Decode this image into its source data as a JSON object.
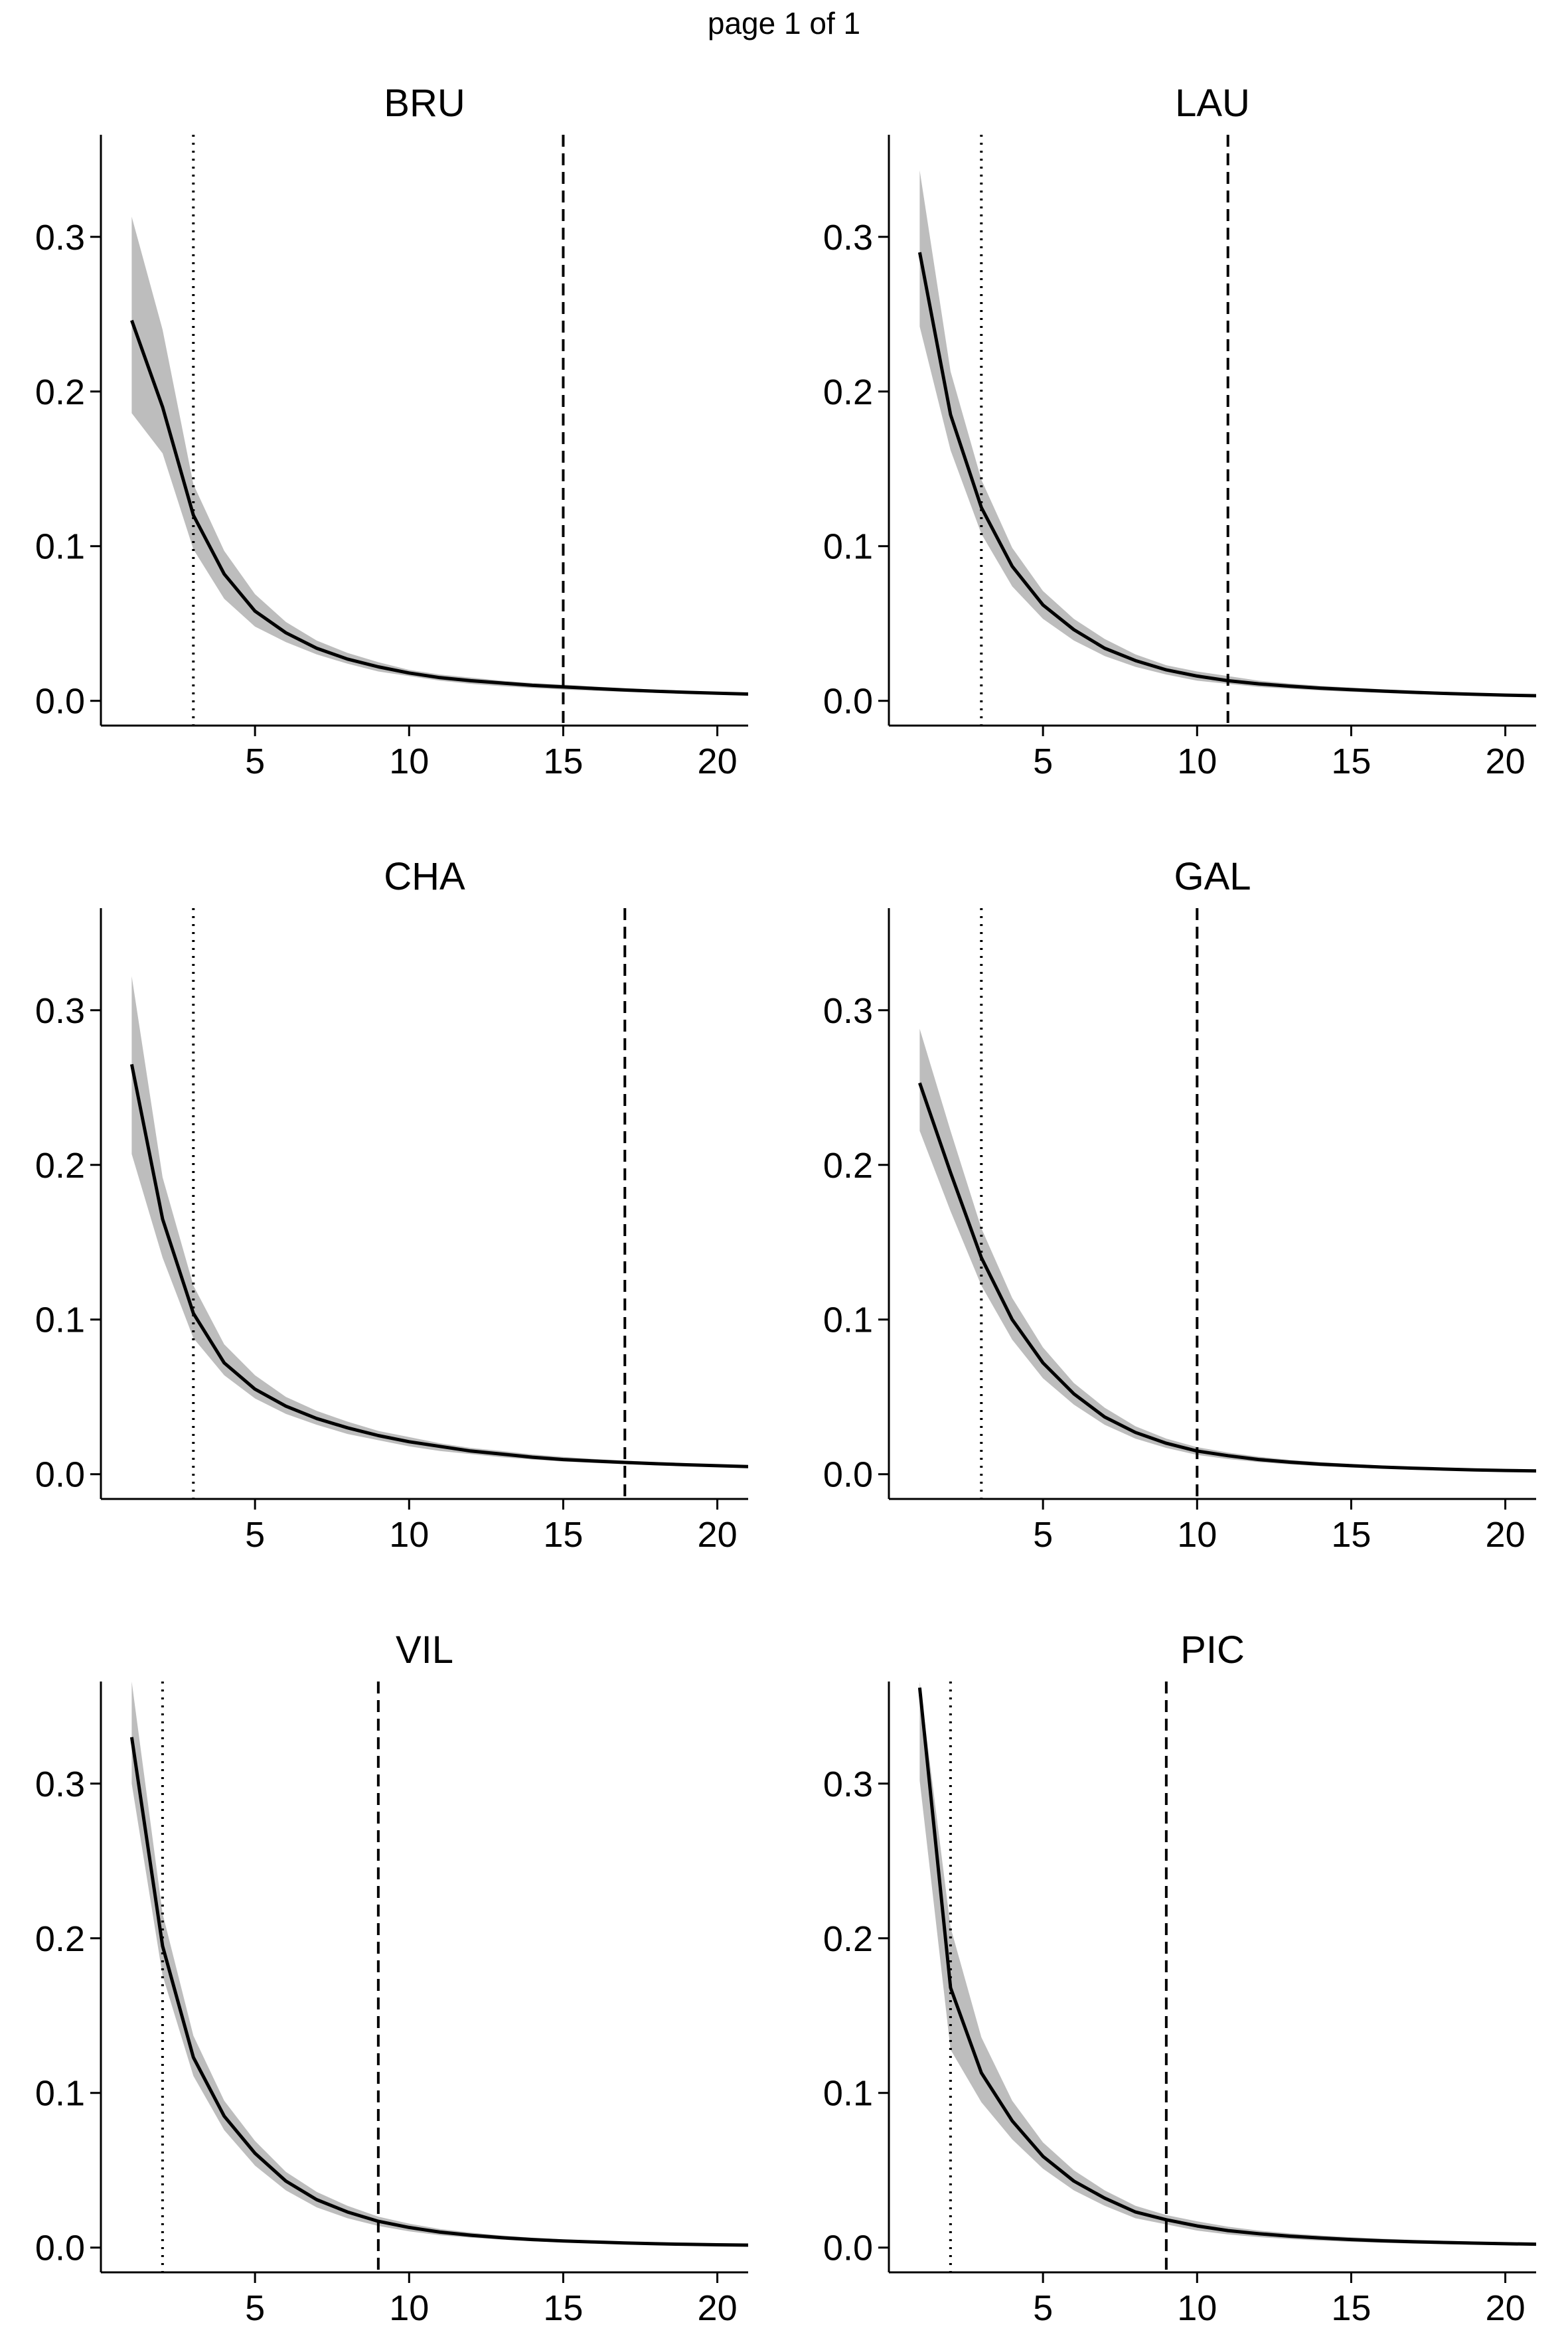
{
  "page": {
    "label": "page 1 of 1"
  },
  "chart_data": [
    {
      "type": "line",
      "title": "BRU",
      "xlabel": "",
      "ylabel": "",
      "xlim": [
        0,
        21
      ],
      "ylim": [
        -0.016,
        0.366
      ],
      "xticks": [
        5,
        10,
        15,
        20
      ],
      "yticks": [
        0.0,
        0.1,
        0.2,
        0.3
      ],
      "xtick_labels": [
        "5",
        "10",
        "15",
        "20"
      ],
      "ytick_labels": [
        "0.0",
        "0.1",
        "0.2",
        "0.3"
      ],
      "grid": false,
      "band_color": "#bdbdbd",
      "line_color": "#000000",
      "x": [
        1,
        2,
        3,
        4,
        5,
        6,
        7,
        8,
        9,
        10,
        11,
        12,
        13,
        14,
        15,
        16,
        17,
        18,
        19,
        20,
        21
      ],
      "y": [
        0.246,
        0.19,
        0.12,
        0.082,
        0.058,
        0.044,
        0.034,
        0.027,
        0.022,
        0.018,
        0.015,
        0.013,
        0.0115,
        0.01,
        0.009,
        0.008,
        0.007,
        0.0062,
        0.0055,
        0.0049,
        0.0044
      ],
      "lower": [
        0.186,
        0.16,
        0.098,
        0.066,
        0.048,
        0.038,
        0.03,
        0.024,
        0.019,
        0.016,
        0.013,
        0.011,
        0.0095,
        0.0083,
        0.0073,
        0.0065,
        0.0058,
        0.0052,
        0.0046,
        0.0041,
        0.0037
      ],
      "upper": [
        0.313,
        0.24,
        0.14,
        0.097,
        0.069,
        0.051,
        0.039,
        0.031,
        0.025,
        0.02,
        0.017,
        0.015,
        0.013,
        0.0115,
        0.0105,
        0.0093,
        0.0082,
        0.0072,
        0.0064,
        0.0057,
        0.0051
      ],
      "dotted_vline": 3,
      "dashed_vline": 15
    },
    {
      "type": "line",
      "title": "LAU",
      "xlabel": "",
      "ylabel": "",
      "xlim": [
        0,
        21
      ],
      "ylim": [
        -0.016,
        0.366
      ],
      "xticks": [
        5,
        10,
        15,
        20
      ],
      "yticks": [
        0.0,
        0.1,
        0.2,
        0.3
      ],
      "xtick_labels": [
        "5",
        "10",
        "15",
        "20"
      ],
      "ytick_labels": [
        "0.0",
        "0.1",
        "0.2",
        "0.3"
      ],
      "grid": false,
      "band_color": "#bdbdbd",
      "line_color": "#000000",
      "x": [
        1,
        2,
        3,
        4,
        5,
        6,
        7,
        8,
        9,
        10,
        11,
        12,
        13,
        14,
        15,
        16,
        17,
        18,
        19,
        20,
        21
      ],
      "y": [
        0.29,
        0.185,
        0.125,
        0.087,
        0.062,
        0.046,
        0.034,
        0.026,
        0.02,
        0.016,
        0.013,
        0.011,
        0.0095,
        0.0082,
        0.0072,
        0.0063,
        0.0055,
        0.0048,
        0.0042,
        0.0037,
        0.0033
      ],
      "lower": [
        0.242,
        0.162,
        0.108,
        0.074,
        0.053,
        0.039,
        0.029,
        0.022,
        0.017,
        0.013,
        0.011,
        0.009,
        0.0078,
        0.0067,
        0.0058,
        0.0051,
        0.0044,
        0.0038,
        0.0033,
        0.0029,
        0.0026
      ],
      "upper": [
        0.343,
        0.213,
        0.143,
        0.099,
        0.071,
        0.053,
        0.04,
        0.03,
        0.023,
        0.019,
        0.016,
        0.013,
        0.0112,
        0.0097,
        0.0086,
        0.0075,
        0.0066,
        0.0058,
        0.0051,
        0.0045,
        0.004
      ],
      "dotted_vline": 3,
      "dashed_vline": 11
    },
    {
      "type": "line",
      "title": "CHA",
      "xlabel": "",
      "ylabel": "",
      "xlim": [
        0,
        21
      ],
      "ylim": [
        -0.016,
        0.366
      ],
      "xticks": [
        5,
        10,
        15,
        20
      ],
      "yticks": [
        0.0,
        0.1,
        0.2,
        0.3
      ],
      "xtick_labels": [
        "5",
        "10",
        "15",
        "20"
      ],
      "ytick_labels": [
        "0.0",
        "0.1",
        "0.2",
        "0.3"
      ],
      "grid": false,
      "band_color": "#bdbdbd",
      "line_color": "#000000",
      "x": [
        1,
        2,
        3,
        4,
        5,
        6,
        7,
        8,
        9,
        10,
        11,
        12,
        13,
        14,
        15,
        16,
        17,
        18,
        19,
        20,
        21
      ],
      "y": [
        0.265,
        0.165,
        0.104,
        0.072,
        0.055,
        0.044,
        0.036,
        0.03,
        0.025,
        0.021,
        0.018,
        0.015,
        0.013,
        0.011,
        0.0095,
        0.0085,
        0.0076,
        0.0068,
        0.0061,
        0.0055,
        0.0049
      ],
      "lower": [
        0.207,
        0.14,
        0.088,
        0.064,
        0.049,
        0.039,
        0.032,
        0.026,
        0.022,
        0.018,
        0.015,
        0.013,
        0.011,
        0.0095,
        0.0082,
        0.0073,
        0.0065,
        0.0058,
        0.0052,
        0.0047,
        0.0042
      ],
      "upper": [
        0.322,
        0.192,
        0.122,
        0.084,
        0.064,
        0.05,
        0.041,
        0.034,
        0.028,
        0.024,
        0.02,
        0.017,
        0.015,
        0.0128,
        0.0112,
        0.0099,
        0.0088,
        0.0079,
        0.0071,
        0.0064,
        0.0057
      ],
      "dotted_vline": 3,
      "dashed_vline": 17
    },
    {
      "type": "line",
      "title": "GAL",
      "xlabel": "",
      "ylabel": "",
      "xlim": [
        0,
        21
      ],
      "ylim": [
        -0.016,
        0.366
      ],
      "xticks": [
        5,
        10,
        15,
        20
      ],
      "yticks": [
        0.0,
        0.1,
        0.2,
        0.3
      ],
      "xtick_labels": [
        "5",
        "10",
        "15",
        "20"
      ],
      "ytick_labels": [
        "0.0",
        "0.1",
        "0.2",
        "0.3"
      ],
      "grid": false,
      "band_color": "#bdbdbd",
      "line_color": "#000000",
      "x": [
        1,
        2,
        3,
        4,
        5,
        6,
        7,
        8,
        9,
        10,
        11,
        12,
        13,
        14,
        15,
        16,
        17,
        18,
        19,
        20,
        21
      ],
      "y": [
        0.253,
        0.195,
        0.14,
        0.1,
        0.072,
        0.052,
        0.037,
        0.027,
        0.02,
        0.015,
        0.012,
        0.0095,
        0.0078,
        0.0065,
        0.0055,
        0.0046,
        0.0039,
        0.0033,
        0.0028,
        0.0024,
        0.0021
      ],
      "lower": [
        0.222,
        0.17,
        0.122,
        0.087,
        0.062,
        0.045,
        0.032,
        0.023,
        0.017,
        0.0125,
        0.0098,
        0.0078,
        0.0063,
        0.0052,
        0.0043,
        0.0036,
        0.003,
        0.0025,
        0.0021,
        0.0018,
        0.0015
      ],
      "upper": [
        0.288,
        0.222,
        0.159,
        0.114,
        0.082,
        0.059,
        0.043,
        0.031,
        0.023,
        0.0175,
        0.014,
        0.0113,
        0.0093,
        0.0078,
        0.0066,
        0.0056,
        0.0048,
        0.0041,
        0.0035,
        0.003,
        0.0026
      ],
      "dotted_vline": 3,
      "dashed_vline": 10
    },
    {
      "type": "line",
      "title": "VIL",
      "xlabel": "",
      "ylabel": "",
      "xlim": [
        0,
        21
      ],
      "ylim": [
        -0.016,
        0.366
      ],
      "xticks": [
        5,
        10,
        15,
        20
      ],
      "yticks": [
        0.0,
        0.1,
        0.2,
        0.3
      ],
      "xtick_labels": [
        "5",
        "10",
        "15",
        "20"
      ],
      "ytick_labels": [
        "0.0",
        "0.1",
        "0.2",
        "0.3"
      ],
      "grid": false,
      "band_color": "#bdbdbd",
      "line_color": "#000000",
      "x": [
        1,
        2,
        3,
        4,
        5,
        6,
        7,
        8,
        9,
        10,
        11,
        12,
        13,
        14,
        15,
        16,
        17,
        18,
        19,
        20,
        21
      ],
      "y": [
        0.33,
        0.195,
        0.123,
        0.085,
        0.061,
        0.043,
        0.031,
        0.023,
        0.017,
        0.013,
        0.01,
        0.008,
        0.0064,
        0.0052,
        0.0043,
        0.0036,
        0.003,
        0.0025,
        0.0021,
        0.0018,
        0.0016
      ],
      "lower": [
        0.3,
        0.176,
        0.111,
        0.076,
        0.053,
        0.037,
        0.026,
        0.019,
        0.014,
        0.0105,
        0.008,
        0.0064,
        0.0051,
        0.0041,
        0.0034,
        0.0028,
        0.0023,
        0.0019,
        0.0016,
        0.0014,
        0.0012
      ],
      "upper": [
        0.366,
        0.216,
        0.137,
        0.095,
        0.069,
        0.049,
        0.036,
        0.027,
        0.02,
        0.0155,
        0.012,
        0.0097,
        0.0078,
        0.0064,
        0.0053,
        0.0045,
        0.0038,
        0.0032,
        0.0027,
        0.0023,
        0.002
      ],
      "dotted_vline": 2,
      "dashed_vline": 9
    },
    {
      "type": "line",
      "title": "PIC",
      "xlabel": "",
      "ylabel": "",
      "xlim": [
        0,
        21
      ],
      "ylim": [
        -0.016,
        0.366
      ],
      "xticks": [
        5,
        10,
        15,
        20
      ],
      "yticks": [
        0.0,
        0.1,
        0.2,
        0.3
      ],
      "xtick_labels": [
        "5",
        "10",
        "15",
        "20"
      ],
      "ytick_labels": [
        "0.0",
        "0.1",
        "0.2",
        "0.3"
      ],
      "grid": false,
      "band_color": "#bdbdbd",
      "line_color": "#000000",
      "x": [
        1,
        2,
        3,
        4,
        5,
        6,
        7,
        8,
        9,
        10,
        11,
        12,
        13,
        14,
        15,
        16,
        17,
        18,
        19,
        20,
        21
      ],
      "y": [
        0.362,
        0.168,
        0.113,
        0.082,
        0.059,
        0.043,
        0.032,
        0.023,
        0.018,
        0.014,
        0.011,
        0.009,
        0.0074,
        0.0062,
        0.0052,
        0.0044,
        0.0038,
        0.0033,
        0.0029,
        0.0025,
        0.0022
      ],
      "lower": [
        0.302,
        0.128,
        0.094,
        0.07,
        0.051,
        0.037,
        0.027,
        0.019,
        0.015,
        0.011,
        0.0085,
        0.0068,
        0.0055,
        0.0045,
        0.0037,
        0.0031,
        0.0026,
        0.0022,
        0.0019,
        0.0016,
        0.0014
      ],
      "upper": [
        0.366,
        0.207,
        0.136,
        0.095,
        0.068,
        0.05,
        0.037,
        0.027,
        0.021,
        0.017,
        0.0135,
        0.011,
        0.0092,
        0.0078,
        0.0067,
        0.0058,
        0.005,
        0.0044,
        0.0039,
        0.0034,
        0.003
      ],
      "dotted_vline": 2,
      "dashed_vline": 9
    }
  ]
}
